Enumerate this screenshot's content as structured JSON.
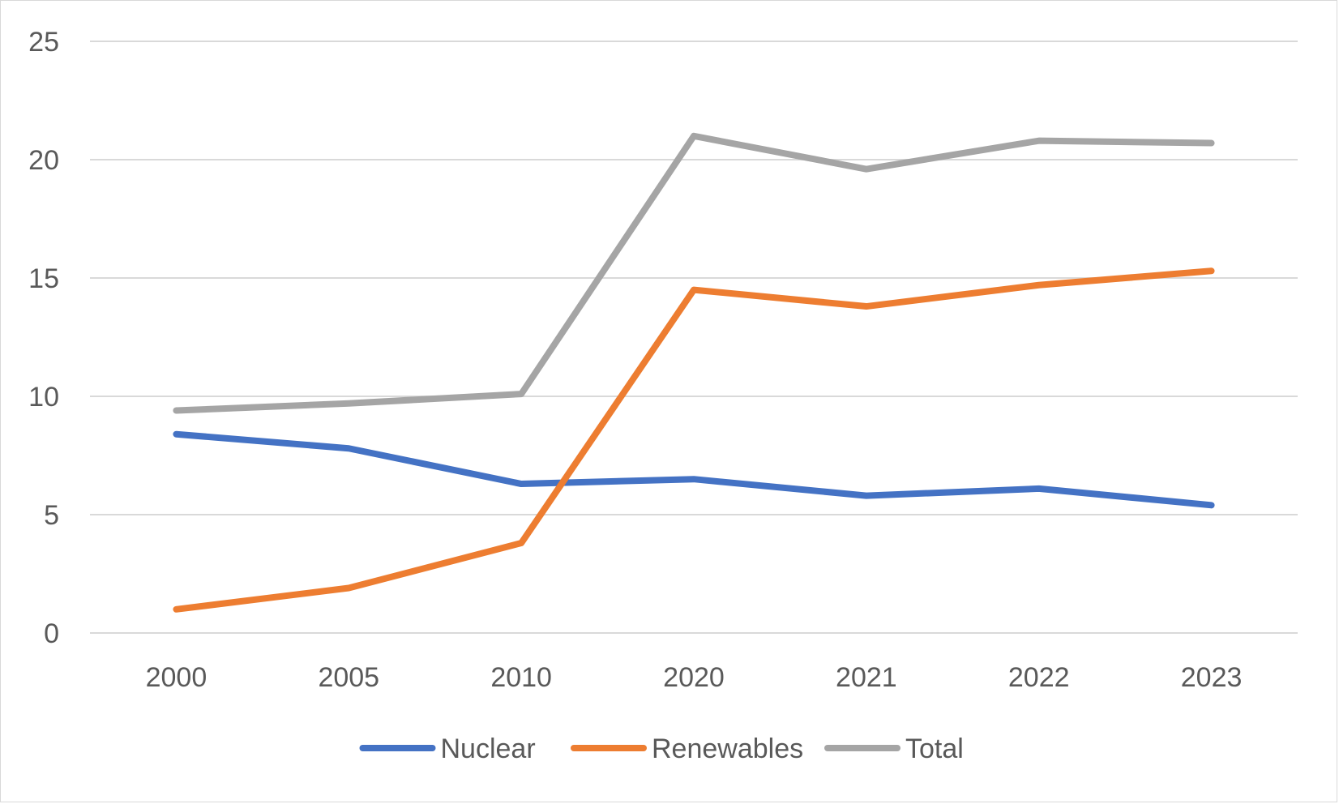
{
  "chart_data": {
    "type": "line",
    "title": "",
    "xlabel": "",
    "ylabel": "",
    "categories": [
      "2000",
      "2005",
      "2010",
      "2020",
      "2021",
      "2022",
      "2023"
    ],
    "ylim": [
      0,
      25
    ],
    "yticks": [
      0,
      5,
      10,
      15,
      20,
      25
    ],
    "grid": "horizontal",
    "legend": "bottom",
    "series": [
      {
        "name": "Nuclear",
        "color": "#4472c4",
        "values": [
          8.4,
          7.8,
          6.3,
          6.5,
          5.8,
          6.1,
          5.4
        ]
      },
      {
        "name": "Renewables",
        "color": "#ed7d31",
        "values": [
          1.0,
          1.9,
          3.8,
          14.5,
          13.8,
          14.7,
          15.3
        ]
      },
      {
        "name": "Total",
        "color": "#a5a5a5",
        "values": [
          9.4,
          9.7,
          10.1,
          21.0,
          19.6,
          20.8,
          20.7
        ]
      }
    ]
  }
}
